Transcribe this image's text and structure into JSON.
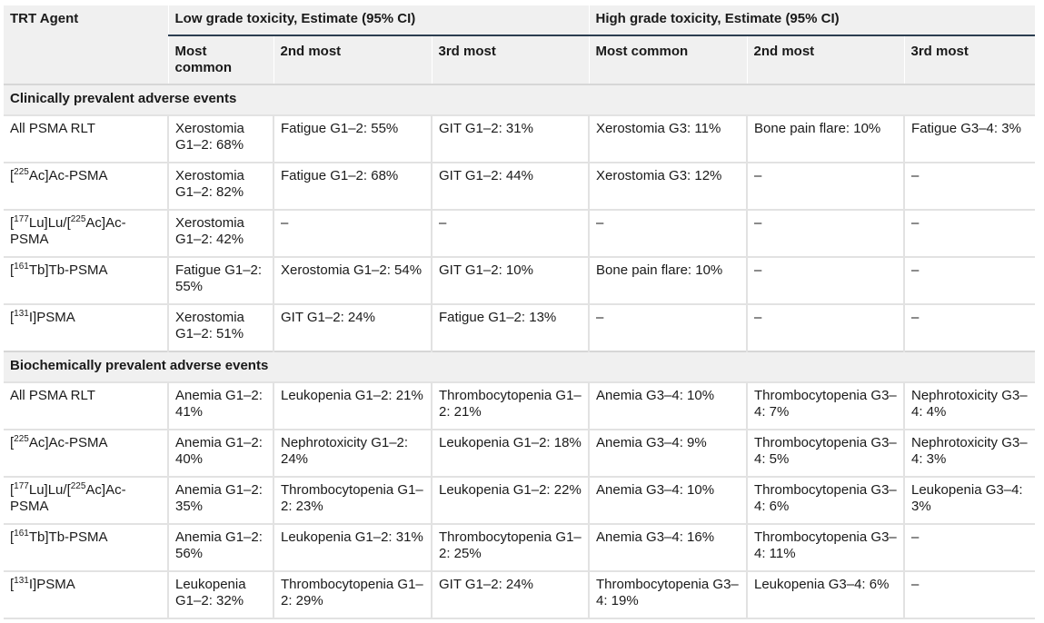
{
  "header": {
    "agent": "TRT Agent",
    "low_group": "Low grade toxicity, Estimate (95% CI)",
    "high_group": "High grade toxicity, Estimate (95% CI)",
    "sub": [
      "Most common",
      "2nd most",
      "3rd most",
      "Most common",
      "2nd most",
      "3rd most"
    ]
  },
  "sections": [
    {
      "title": "Clinically prevalent adverse events",
      "rows": [
        {
          "agent_pre": "",
          "agent": "All PSMA RLT",
          "cells": [
            "Xerostomia G1–2: 68%",
            "Fatigue G1–2: 55%",
            "GIT G1–2: 31%",
            "Xerostomia G3: 11%",
            "Bone pain flare: 10%",
            "Fatigue G3–4: 3%"
          ]
        },
        {
          "agent_pre": "[",
          "agent_sup": "225",
          "agent": "Ac]Ac-PSMA",
          "cells": [
            "Xerostomia G1–2: 82%",
            "Fatigue G1–2: 68%",
            "GIT G1–2: 44%",
            "Xerostomia G3: 12%",
            "–",
            "–"
          ]
        },
        {
          "agent_pre": "[",
          "agent_sup": "177",
          "agent_mid": "Lu]Lu/[",
          "agent_sup2": "225",
          "agent": "Ac]Ac-PSMA",
          "cells": [
            "Xerostomia G1–2: 42%",
            "–",
            "–",
            "–",
            "–",
            "–"
          ]
        },
        {
          "agent_pre": "[",
          "agent_sup": "161",
          "agent": "Tb]Tb-PSMA",
          "cells": [
            "Fatigue G1–2: 55%",
            "Xerostomia G1–2: 54%",
            "GIT G1–2: 10%",
            "Bone pain flare: 10%",
            "–",
            "–"
          ]
        },
        {
          "agent_pre": "[",
          "agent_sup": "131",
          "agent": "I]PSMA",
          "cells": [
            "Xerostomia G1–2: 51%",
            "GIT G1–2: 24%",
            "Fatigue G1–2: 13%",
            "–",
            "–",
            "–"
          ]
        }
      ]
    },
    {
      "title": "Biochemically prevalent adverse events",
      "rows": [
        {
          "agent_pre": "",
          "agent": "All PSMA RLT",
          "cells": [
            "Anemia G1–2: 41%",
            "Leukopenia G1–2: 21%",
            "Thrombocytopenia G1–2: 21%",
            "Anemia G3–4: 10%",
            "Thrombocytopenia G3–4: 7%",
            "Nephrotoxicity G3–4: 4%"
          ]
        },
        {
          "agent_pre": "[",
          "agent_sup": "225",
          "agent": "Ac]Ac-PSMA",
          "cells": [
            "Anemia G1–2: 40%",
            "Nephrotoxicity G1–2: 24%",
            "Leukopenia G1–2: 18%",
            "Anemia G3–4: 9%",
            "Thrombocytopenia G3–4: 5%",
            "Nephrotoxicity G3–4: 3%"
          ]
        },
        {
          "agent_pre": "[",
          "agent_sup": "177",
          "agent_mid": "Lu]Lu/[",
          "agent_sup2": "225",
          "agent": "Ac]Ac-PSMA",
          "cells": [
            "Anemia G1–2: 35%",
            "Thrombocytopenia G1–2: 23%",
            "Leukopenia G1–2: 22%",
            "Anemia G3–4: 10%",
            "Thrombocytopenia G3–4: 6%",
            "Leukopenia G3–4: 3%"
          ]
        },
        {
          "agent_pre": "[",
          "agent_sup": "161",
          "agent": "Tb]Tb-PSMA",
          "cells": [
            "Anemia G1–2: 56%",
            "Leukopenia G1–2: 31%",
            "Thrombocytopenia G1–2: 25%",
            "Anemia G3–4: 16%",
            "Thrombocytopenia G3–4: 11%",
            "–"
          ]
        },
        {
          "agent_pre": "[",
          "agent_sup": "131",
          "agent": "I]PSMA",
          "cells": [
            "Leukopenia G1–2: 32%",
            "Thrombocytopenia G1–2: 29%",
            "GIT G1–2: 24%",
            "Thrombocytopenia G3–4: 19%",
            "Leukopenia G3–4: 6%",
            "–"
          ]
        }
      ]
    }
  ]
}
